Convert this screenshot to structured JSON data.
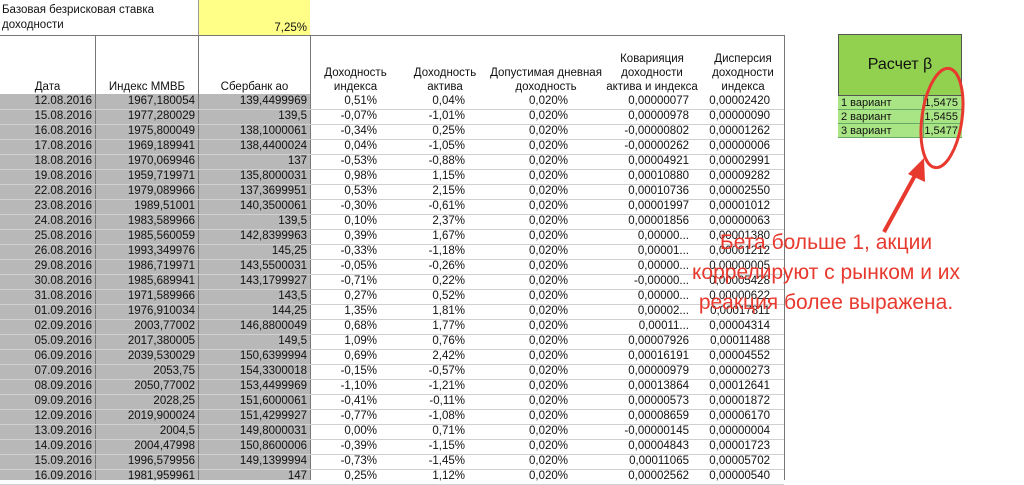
{
  "rate": {
    "label": "Базовая безрисковая ставка доходности",
    "value": "7,25%"
  },
  "headers": {
    "date": "Дата",
    "index": "Индекс ММВБ",
    "sber": "Сбербанк ао",
    "ret_index": "Доходность индекса",
    "ret_asset": "Доходность актива",
    "allowed": "Допустимая дневная доходность",
    "cov": "Коварияция доходности актива и индекса",
    "var": "Дисперсия доходности индекса"
  },
  "rows": [
    {
      "date": "12.08.2016",
      "index": "1967,180054",
      "sber": "139,4499969",
      "ri": "0,51%",
      "ra": "0,04%",
      "al": "0,020%",
      "cov": "0,00000077",
      "var": "0,00002420"
    },
    {
      "date": "15.08.2016",
      "index": "1977,280029",
      "sber": "139,5",
      "ri": "-0,07%",
      "ra": "-1,01%",
      "al": "0,020%",
      "cov": "0,00000978",
      "var": "0,00000090"
    },
    {
      "date": "16.08.2016",
      "index": "1975,800049",
      "sber": "138,1000061",
      "ri": "-0,34%",
      "ra": "0,25%",
      "al": "0,020%",
      "cov": "-0,00000802",
      "var": "0,00001262"
    },
    {
      "date": "17.08.2016",
      "index": "1969,189941",
      "sber": "138,4400024",
      "ri": "0,04%",
      "ra": "-1,05%",
      "al": "0,020%",
      "cov": "-0,00000262",
      "var": "0,00000006"
    },
    {
      "date": "18.08.2016",
      "index": "1970,069946",
      "sber": "137",
      "ri": "-0,53%",
      "ra": "-0,88%",
      "al": "0,020%",
      "cov": "0,00004921",
      "var": "0,00002991"
    },
    {
      "date": "19.08.2016",
      "index": "1959,719971",
      "sber": "135,8000031",
      "ri": "0,98%",
      "ra": "1,15%",
      "al": "0,020%",
      "cov": "0,00010880",
      "var": "0,00009282"
    },
    {
      "date": "22.08.2016",
      "index": "1979,089966",
      "sber": "137,3699951",
      "ri": "0,53%",
      "ra": "2,15%",
      "al": "0,020%",
      "cov": "0,00010736",
      "var": "0,00002550"
    },
    {
      "date": "23.08.2016",
      "index": "1989,51001",
      "sber": "140,3500061",
      "ri": "-0,30%",
      "ra": "-0,61%",
      "al": "0,020%",
      "cov": "0,00001997",
      "var": "0,00001012"
    },
    {
      "date": "24.08.2016",
      "index": "1983,589966",
      "sber": "139,5",
      "ri": "0,10%",
      "ra": "2,37%",
      "al": "0,020%",
      "cov": "0,00001856",
      "var": "0,00000063"
    },
    {
      "date": "25.08.2016",
      "index": "1985,560059",
      "sber": "142,8399963",
      "ri": "0,39%",
      "ra": "1,67%",
      "al": "0,020%",
      "cov": "0,00000...",
      "var": "0,00001380"
    },
    {
      "date": "26.08.2016",
      "index": "1993,349976",
      "sber": "145,25",
      "ri": "-0,33%",
      "ra": "-1,18%",
      "al": "0,020%",
      "cov": "0,00001...",
      "var": "0,00001212"
    },
    {
      "date": "29.08.2016",
      "index": "1986,719971",
      "sber": "143,5500031",
      "ri": "-0,05%",
      "ra": "-0,26%",
      "al": "0,020%",
      "cov": "0,00000...",
      "var": "0,00000005"
    },
    {
      "date": "30.08.2016",
      "index": "1985,689941",
      "sber": "143,1799927",
      "ri": "-0,71%",
      "ra": "0,22%",
      "al": "0,020%",
      "cov": "-0,00000...",
      "var": "0,00005428"
    },
    {
      "date": "31.08.2016",
      "index": "1971,589966",
      "sber": "143,5",
      "ri": "0,27%",
      "ra": "0,52%",
      "al": "0,020%",
      "cov": "0,00000...",
      "var": "0,00000622"
    },
    {
      "date": "01.09.2016",
      "index": "1976,910034",
      "sber": "144,25",
      "ri": "1,35%",
      "ra": "1,81%",
      "al": "0,020%",
      "cov": "0,00002...",
      "var": "0,00017811"
    },
    {
      "date": "02.09.2016",
      "index": "2003,77002",
      "sber": "146,8800049",
      "ri": "0,68%",
      "ra": "1,77%",
      "al": "0,020%",
      "cov": "0,00011...",
      "var": "0,00004314"
    },
    {
      "date": "05.09.2016",
      "index": "2017,380005",
      "sber": "149,5",
      "ri": "1,09%",
      "ra": "0,76%",
      "al": "0,020%",
      "cov": "0,00007926",
      "var": "0,00011488"
    },
    {
      "date": "06.09.2016",
      "index": "2039,530029",
      "sber": "150,6399994",
      "ri": "0,69%",
      "ra": "2,42%",
      "al": "0,020%",
      "cov": "0,00016191",
      "var": "0,00004552"
    },
    {
      "date": "07.09.2016",
      "index": "2053,75",
      "sber": "154,3300018",
      "ri": "-0,15%",
      "ra": "-0,57%",
      "al": "0,020%",
      "cov": "0,00000979",
      "var": "0,00000273"
    },
    {
      "date": "08.09.2016",
      "index": "2050,77002",
      "sber": "153,4499969",
      "ri": "-1,10%",
      "ra": "-1,21%",
      "al": "0,020%",
      "cov": "0,00013864",
      "var": "0,00012641"
    },
    {
      "date": "09.09.2016",
      "index": "2028,25",
      "sber": "151,6000061",
      "ri": "-0,41%",
      "ra": "-0,11%",
      "al": "0,020%",
      "cov": "0,00000573",
      "var": "0,00001872"
    },
    {
      "date": "12.09.2016",
      "index": "2019,900024",
      "sber": "151,4299927",
      "ri": "-0,77%",
      "ra": "-1,08%",
      "al": "0,020%",
      "cov": "0,00008659",
      "var": "0,00006170"
    },
    {
      "date": "13.09.2016",
      "index": "2004,5",
      "sber": "149,8000031",
      "ri": "0,00%",
      "ra": "0,71%",
      "al": "0,020%",
      "cov": "-0,00000145",
      "var": "0,00000004"
    },
    {
      "date": "14.09.2016",
      "index": "2004,47998",
      "sber": "150,8600006",
      "ri": "-0,39%",
      "ra": "-1,15%",
      "al": "0,020%",
      "cov": "0,00004843",
      "var": "0,00001723"
    },
    {
      "date": "15.09.2016",
      "index": "1996,579956",
      "sber": "149,1399994",
      "ri": "-0,73%",
      "ra": "-1,45%",
      "al": "0,020%",
      "cov": "0,00011065",
      "var": "0,00005702"
    },
    {
      "date": "16.09.2016",
      "index": "1981,959961",
      "sber": "147",
      "ri": "0,25%",
      "ra": "1,12%",
      "al": "0,020%",
      "cov": "0,00002562",
      "var": "0,00000540"
    }
  ],
  "beta": {
    "title": "Расчет β",
    "variants": [
      {
        "name": "1 вариант",
        "value": "1,5475"
      },
      {
        "name": "2 вариант",
        "value": "1,5455"
      },
      {
        "name": "3 вариант",
        "value": "1,5477"
      }
    ]
  },
  "annotation": {
    "lines": [
      "Бета больше 1, акции",
      "коррелируют с рынком и их",
      "реакция более выражена."
    ],
    "color": "#e8392e"
  }
}
